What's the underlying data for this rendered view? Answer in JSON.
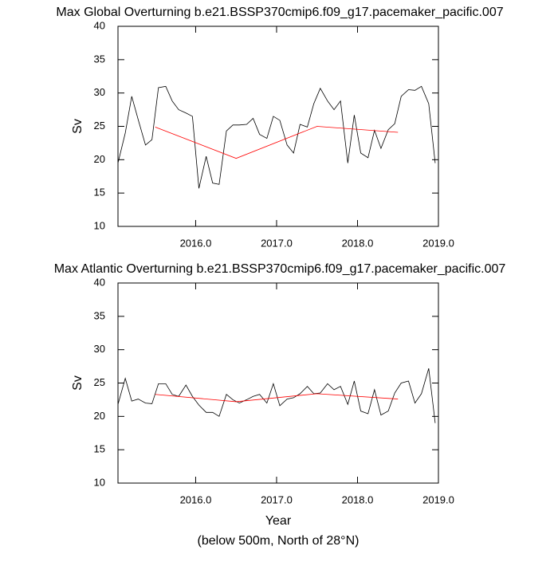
{
  "chart_data": [
    {
      "type": "line",
      "title": "Max Global Overturning b.e21.BSSP370cmip6.f09_g17.pacemaker_pacific.007",
      "ylabel": "Sv",
      "xlim": [
        2015.04,
        2019.0
      ],
      "ylim": [
        10,
        40
      ],
      "xticks": [
        {
          "value": 2016,
          "label": "2016.0"
        },
        {
          "value": 2017,
          "label": "2017.0"
        },
        {
          "value": 2018,
          "label": "2018.0"
        },
        {
          "value": 2019,
          "label": "2019.0"
        }
      ],
      "yticks": [
        10,
        15,
        20,
        25,
        30,
        35,
        40
      ],
      "series": [
        {
          "color": "#000000",
          "x": [
            2015.04,
            2015.13,
            2015.21,
            2015.29,
            2015.38,
            2015.46,
            2015.54,
            2015.63,
            2015.71,
            2015.79,
            2015.88,
            2015.96,
            2016.04,
            2016.13,
            2016.21,
            2016.29,
            2016.38,
            2016.46,
            2016.54,
            2016.63,
            2016.71,
            2016.79,
            2016.88,
            2016.96,
            2017.04,
            2017.13,
            2017.21,
            2017.29,
            2017.38,
            2017.46,
            2017.54,
            2017.63,
            2017.71,
            2017.79,
            2017.88,
            2017.96,
            2018.04,
            2018.13,
            2018.21,
            2018.29,
            2018.38,
            2018.46,
            2018.54,
            2018.63,
            2018.71,
            2018.79,
            2018.88,
            2018.96
          ],
          "values": [
            19.5,
            24,
            29.5,
            26,
            22.2,
            23,
            30.8,
            31,
            28.8,
            27.5,
            27,
            26.5,
            15.7,
            20.5,
            16.5,
            16.3,
            24.3,
            25.2,
            25.2,
            25.3,
            26.2,
            23.8,
            23.2,
            26.5,
            25.9,
            22.2,
            21,
            25.3,
            24.9,
            28.4,
            30.7,
            28.8,
            27.5,
            28.8,
            19.5,
            26.7,
            21,
            20.3,
            24.4,
            21.7,
            24.5,
            25.4,
            29.5,
            30.5,
            30.4,
            31,
            28.4,
            19.5
          ]
        },
        {
          "color": "#ff0000",
          "x": [
            2015.5,
            2016.5,
            2017.5,
            2018.5
          ],
          "values": [
            24.9,
            20.2,
            25.0,
            24.1
          ]
        }
      ]
    },
    {
      "type": "line",
      "title": "Max Atlantic Overturning b.e21.BSSP370cmip6.f09_g17.pacemaker_pacific.007",
      "ylabel": "Sv",
      "xlabel": "Year",
      "note": "(below 500m, North of 28°N)",
      "xlim": [
        2015.04,
        2019.0
      ],
      "ylim": [
        10,
        40
      ],
      "xticks": [
        {
          "value": 2016,
          "label": "2016.0"
        },
        {
          "value": 2017,
          "label": "2017.0"
        },
        {
          "value": 2018,
          "label": "2018.0"
        },
        {
          "value": 2019,
          "label": "2019.0"
        }
      ],
      "yticks": [
        10,
        15,
        20,
        25,
        30,
        35,
        40
      ],
      "series": [
        {
          "color": "#000000",
          "x": [
            2015.04,
            2015.13,
            2015.21,
            2015.29,
            2015.38,
            2015.46,
            2015.54,
            2015.63,
            2015.71,
            2015.79,
            2015.88,
            2015.96,
            2016.04,
            2016.13,
            2016.21,
            2016.29,
            2016.38,
            2016.46,
            2016.54,
            2016.63,
            2016.71,
            2016.79,
            2016.88,
            2016.96,
            2017.04,
            2017.13,
            2017.21,
            2017.29,
            2017.38,
            2017.46,
            2017.54,
            2017.63,
            2017.71,
            2017.79,
            2017.88,
            2017.96,
            2018.04,
            2018.13,
            2018.21,
            2018.29,
            2018.38,
            2018.46,
            2018.54,
            2018.63,
            2018.71,
            2018.79,
            2018.88,
            2018.96
          ],
          "values": [
            21.8,
            25.7,
            22.3,
            22.6,
            22,
            21.9,
            24.9,
            24.9,
            23.3,
            23,
            24.7,
            23,
            21.7,
            20.6,
            20.6,
            20,
            23.3,
            22.5,
            22,
            22.5,
            23,
            23.3,
            22,
            24.9,
            21.6,
            22.6,
            22.8,
            23.4,
            24.5,
            23.4,
            23.5,
            24.9,
            24,
            24.5,
            21.8,
            25.3,
            20.8,
            20.4,
            24,
            20.2,
            20.8,
            23.5,
            25,
            25.3,
            22,
            23.4,
            27.2,
            19
          ]
        },
        {
          "color": "#ff0000",
          "x": [
            2015.5,
            2016.5,
            2017.5,
            2018.5
          ],
          "values": [
            23.3,
            22.2,
            23.4,
            22.6
          ]
        }
      ]
    }
  ]
}
